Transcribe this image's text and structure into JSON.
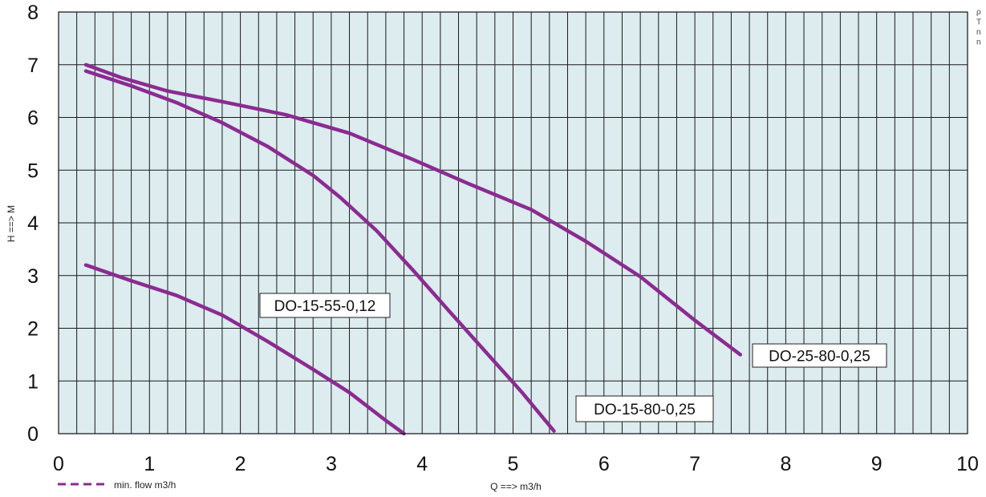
{
  "chart_data": {
    "type": "line",
    "title": "",
    "xlabel": "Q ==> m3/h",
    "ylabel": "H ==> M",
    "xlim": [
      0,
      10
    ],
    "ylim": [
      0,
      8
    ],
    "x_ticks": [
      "0",
      "1",
      "2",
      "3",
      "4",
      "5",
      "6",
      "7",
      "8",
      "9",
      "10"
    ],
    "y_ticks": [
      "0",
      "1",
      "2",
      "3",
      "4",
      "5",
      "6",
      "7",
      "8"
    ],
    "grid": true,
    "plot_background": "#dcecef",
    "grid_color": "#1a1a1a",
    "line_color": "#8b2b91",
    "legend": {
      "placement": "bottom-left",
      "label": "min. flow m3/h",
      "style": "dashed",
      "color": "#8b2b91"
    },
    "corner_text": [
      "ρ",
      "T",
      "n",
      "n"
    ],
    "series": [
      {
        "name": "DO-25-80-0,25",
        "x": [
          0.3,
          0.7,
          1.2,
          1.8,
          2.5,
          3.2,
          3.9,
          4.5,
          5.2,
          5.8,
          6.4,
          7.0,
          7.5
        ],
        "y": [
          7.0,
          6.75,
          6.5,
          6.3,
          6.05,
          5.7,
          5.2,
          4.75,
          4.25,
          3.65,
          2.98,
          2.15,
          1.5
        ]
      },
      {
        "name": "DO-15-55-0,12",
        "x": [
          0.3,
          0.8,
          1.3,
          1.8,
          2.3,
          2.8,
          3.2,
          3.6,
          3.8
        ],
        "y": [
          3.2,
          2.9,
          2.62,
          2.25,
          1.75,
          1.22,
          0.78,
          0.25,
          0.0
        ]
      },
      {
        "name": "DO-15-80-0,25",
        "x": [
          0.3,
          0.8,
          1.3,
          1.8,
          2.3,
          2.8,
          3.1,
          3.5,
          3.9,
          4.3,
          4.7,
          5.1,
          5.45
        ],
        "y": [
          6.88,
          6.6,
          6.28,
          5.9,
          5.45,
          4.9,
          4.48,
          3.85,
          3.1,
          2.32,
          1.55,
          0.78,
          0.05
        ]
      }
    ]
  }
}
